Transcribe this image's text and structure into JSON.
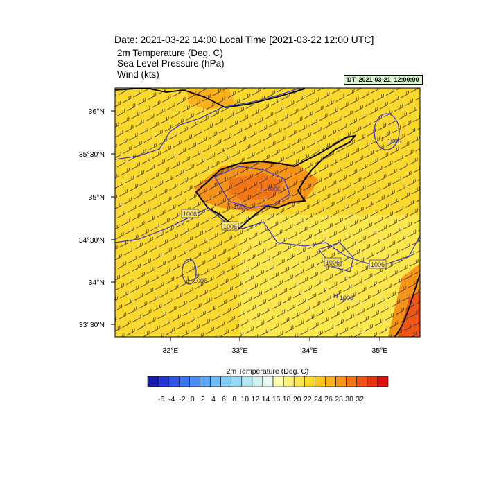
{
  "header": {
    "date_line": "Date: 2021-03-22  14:00 Local Time [2021-03-22  12:00 UTC]",
    "field1": "2m Temperature (Deg. C)",
    "field2": "Sea Level Pressure   (hPa)",
    "field3": "Wind   (kts)",
    "dt_badge": "DT: 2021-03-21_12:00:00"
  },
  "map": {
    "lon_labels": [
      "32°E",
      "33°E",
      "34°E",
      "35°E"
    ],
    "lat_labels": [
      "36°N",
      "35°30'N",
      "35°N",
      "34°30'N",
      "34°N",
      "33°30'N"
    ],
    "isobar_labels": [
      "1006",
      "1006",
      "1006",
      "1006"
    ],
    "pressure_centers": [
      {
        "type": "L",
        "value": "1006"
      },
      {
        "type": "L",
        "value": "1006"
      },
      {
        "type": "H",
        "value": "1006"
      },
      {
        "type": "L",
        "value": "1006"
      },
      {
        "type": "H",
        "value": "1006"
      }
    ]
  },
  "colorbar": {
    "title": "2m Temperature (Deg. C)",
    "tick_labels": [
      "-6",
      "-4",
      "-2",
      "0",
      "2",
      "4",
      "6",
      "8",
      "10",
      "12",
      "14",
      "16",
      "18",
      "20",
      "22",
      "24",
      "26",
      "28",
      "30",
      "32"
    ],
    "colors": [
      "#1a1ab0",
      "#2436d0",
      "#2f55e6",
      "#3a72f0",
      "#4a8ef5",
      "#5aa6f8",
      "#6cbaf8",
      "#80cbf7",
      "#98daf5",
      "#b3e8f3",
      "#cff3f0",
      "#e8fbee",
      "#fdfdb0",
      "#fdf27a",
      "#fde650",
      "#fcd92e",
      "#fbc71e",
      "#f9b01a",
      "#f69418",
      "#f37616",
      "#ef5514",
      "#e83312",
      "#d81010"
    ]
  }
}
